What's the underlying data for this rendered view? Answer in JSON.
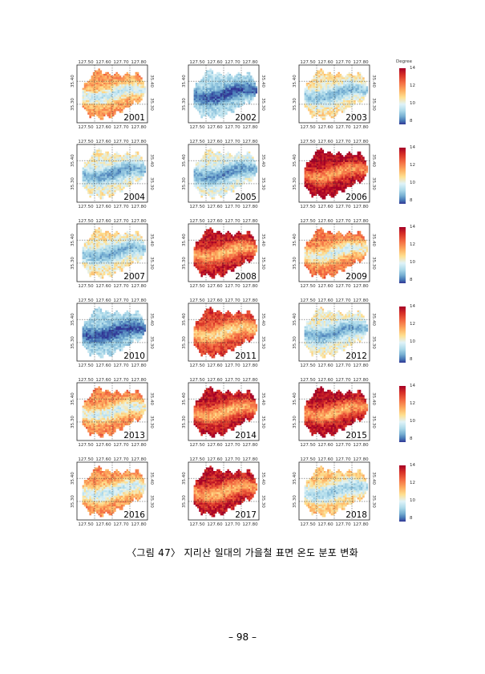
{
  "figure": {
    "legend_title": "Degree",
    "legend_ticks": [
      "14",
      "12",
      "10",
      "8"
    ],
    "x_tick_labels": [
      "127.50",
      "127.60",
      "127.70",
      "127.80"
    ],
    "y_tick_labels": [
      "35.40",
      "35.30"
    ],
    "panels": [
      {
        "year": "2001",
        "warmth": 0.55
      },
      {
        "year": "2002",
        "warmth": 0.2
      },
      {
        "year": "2003",
        "warmth": 0.4
      },
      {
        "year": "2004",
        "warmth": 0.35
      },
      {
        "year": "2005",
        "warmth": 0.32
      },
      {
        "year": "2006",
        "warmth": 0.85
      },
      {
        "year": "2007",
        "warmth": 0.38
      },
      {
        "year": "2008",
        "warmth": 0.8
      },
      {
        "year": "2009",
        "warmth": 0.6
      },
      {
        "year": "2010",
        "warmth": 0.18
      },
      {
        "year": "2011",
        "warmth": 0.72
      },
      {
        "year": "2012",
        "warmth": 0.35
      },
      {
        "year": "2013",
        "warmth": 0.58
      },
      {
        "year": "2014",
        "warmth": 0.8
      },
      {
        "year": "2015",
        "warmth": 0.82
      },
      {
        "year": "2016",
        "warmth": 0.55
      },
      {
        "year": "2017",
        "warmth": 0.8
      },
      {
        "year": "2018",
        "warmth": 0.45
      }
    ]
  },
  "caption": "〈그림 47〉 지리산 일대의 가을철 표면 온도 분포 변화",
  "page_number": "– 98 –"
}
